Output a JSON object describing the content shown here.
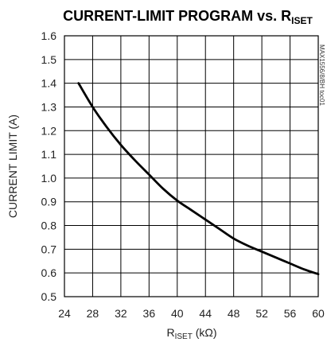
{
  "chart_data": {
    "type": "line",
    "title_main": "CURRENT-LIMIT PROGRAM vs. R",
    "title_sub": "ISET",
    "xlabel_main": "R",
    "xlabel_sub": "ISET",
    "xlabel_unit": " (kΩ)",
    "ylabel": "CURRENT LIMIT (A)",
    "watermark": "MAX1556/8/BH toc01",
    "xlim": [
      24,
      60
    ],
    "ylim": [
      0.5,
      1.6
    ],
    "xticks": [
      "24",
      "28",
      "32",
      "36",
      "40",
      "44",
      "48",
      "52",
      "56",
      "60"
    ],
    "yticks": [
      "0.5",
      "0.6",
      "0.7",
      "0.8",
      "0.9",
      "1.0",
      "1.1",
      "1.2",
      "1.3",
      "1.4",
      "1.5",
      "1.6"
    ],
    "grid": true,
    "series": [
      {
        "x": [
          26,
          28,
          30,
          32,
          34,
          36,
          38,
          40,
          42,
          44,
          46,
          48,
          50,
          52,
          54,
          56,
          58,
          60
        ],
        "y": [
          1.4,
          1.3,
          1.215,
          1.14,
          1.075,
          1.015,
          0.955,
          0.905,
          0.865,
          0.825,
          0.785,
          0.745,
          0.715,
          0.69,
          0.665,
          0.64,
          0.615,
          0.595
        ]
      }
    ]
  }
}
